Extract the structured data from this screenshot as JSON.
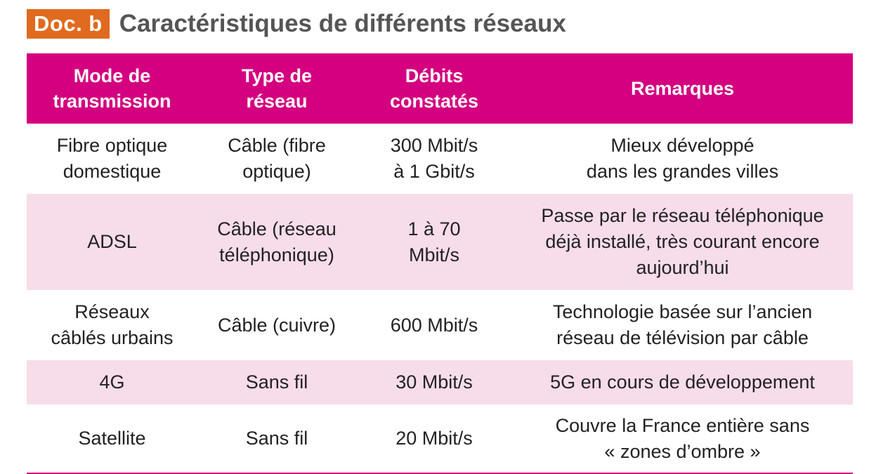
{
  "header": {
    "doc_label": "Doc. b",
    "title": "Caractéristiques de différents réseaux"
  },
  "colors": {
    "label_background": "#e06a1f",
    "table_header_background": "#d4007f",
    "alternate_row_background": "#f7dcea"
  },
  "table": {
    "columns": [
      "Mode de\ntransmission",
      "Type de\nréseau",
      "Débits\nconstatés",
      "Remarques"
    ],
    "rows": [
      [
        "Fibre optique\ndomestique",
        "Câble (fibre\noptique)",
        "300 Mbit/s\nà 1 Gbit/s",
        "Mieux développé\ndans les grandes villes"
      ],
      [
        "ADSL",
        "Câble (réseau\ntéléphonique)",
        "1 à 70\nMbit/s",
        "Passe par le réseau téléphonique\ndéjà installé, très courant encore\naujourd’hui"
      ],
      [
        "Réseaux\ncâblés urbains",
        "Câble (cuivre)",
        "600 Mbit/s",
        "Technologie basée sur l’ancien\nréseau de télévision par câble"
      ],
      [
        "4G",
        "Sans fil",
        "30 Mbit/s",
        "5G en cours de développement"
      ],
      [
        "Satellite",
        "Sans fil",
        "20 Mbit/s",
        "Couvre la France entière sans\n« zones d’ombre »"
      ]
    ]
  }
}
